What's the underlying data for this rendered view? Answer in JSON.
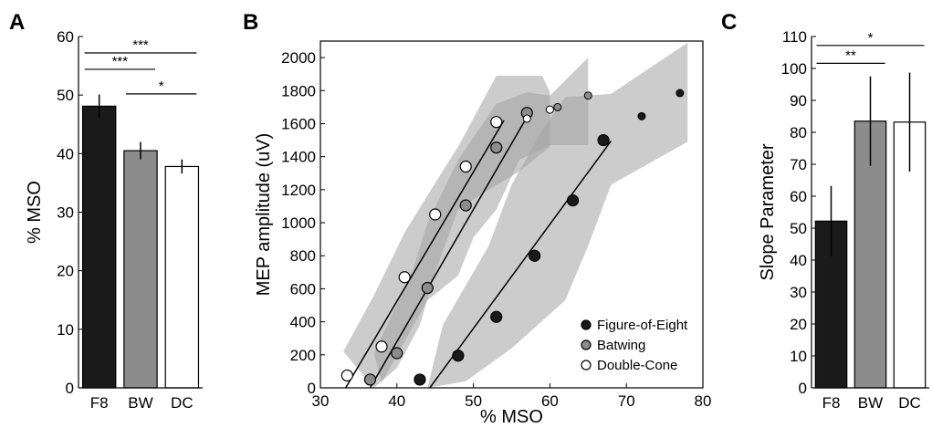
{
  "figure": {
    "panels": [
      {
        "id": "A",
        "label": "A"
      },
      {
        "id": "B",
        "label": "B"
      },
      {
        "id": "C",
        "label": "C"
      }
    ]
  },
  "chart_data": [
    {
      "panel": "A",
      "type": "bar",
      "ylabel": "% MSO",
      "xlabel": "",
      "ylim": [
        0,
        60
      ],
      "yticks": [
        0,
        10,
        20,
        30,
        40,
        50,
        60
      ],
      "categories": [
        "F8",
        "BW",
        "DC"
      ],
      "values": [
        48.1,
        40.5,
        37.8
      ],
      "errors": [
        2.0,
        1.5,
        1.2
      ],
      "colors": [
        "#1a1a1a",
        "#8c8c8c",
        "#ffffff"
      ],
      "significance": [
        {
          "from": 0,
          "to": 2,
          "label": "***",
          "level": 57.2
        },
        {
          "from": 0,
          "to": 1,
          "label": "***",
          "level": 54.4
        },
        {
          "from": 1,
          "to": 2,
          "label": "*",
          "level": 50.2
        }
      ]
    },
    {
      "panel": "B",
      "type": "scatter",
      "xlabel": "% MSO",
      "ylabel": "MEP amplitude (uV)",
      "xlim": [
        30,
        80
      ],
      "ylim": [
        0,
        2100
      ],
      "xticks": [
        30,
        40,
        50,
        60,
        70,
        80
      ],
      "yticks": [
        0,
        200,
        400,
        600,
        800,
        1000,
        1200,
        1400,
        1600,
        1800,
        2000
      ],
      "legend_position": "bottom-right",
      "series": [
        {
          "name": "Figure-of-Eight",
          "color": "#1a1a1a",
          "points": [
            [
              43,
              50
            ],
            [
              48,
              195
            ],
            [
              53,
              430
            ],
            [
              58,
              800
            ],
            [
              63,
              1135
            ],
            [
              67,
              1500
            ]
          ],
          "extra_points": [
            [
              72,
              1645
            ],
            [
              77,
              1785
            ]
          ],
          "fit": [
            [
              44.3,
              0
            ],
            [
              68,
              1495
            ]
          ],
          "band_upper": [
            [
              46,
              380
            ],
            [
              52,
              860
            ],
            [
              55,
              1230
            ],
            [
              59,
              1560
            ],
            [
              62,
              1760
            ],
            [
              68,
              1780
            ],
            [
              78,
              2090
            ]
          ],
          "band_lower": [
            [
              78,
              1490
            ],
            [
              68,
              1230
            ],
            [
              65,
              860
            ],
            [
              62,
              530
            ],
            [
              55,
              240
            ],
            [
              49,
              40
            ],
            [
              44,
              0
            ]
          ]
        },
        {
          "name": "Batwing",
          "color": "#8c8c8c",
          "points": [
            [
              36.5,
              50
            ],
            [
              40,
              210
            ],
            [
              44,
              605
            ],
            [
              49,
              1105
            ],
            [
              53,
              1455
            ],
            [
              57,
              1665
            ]
          ],
          "extra_points": [
            [
              61,
              1700
            ],
            [
              65,
              1770
            ]
          ],
          "fit": [
            [
              36.5,
              0
            ],
            [
              57,
              1640
            ]
          ],
          "band_upper": [
            [
              37,
              210
            ],
            [
              42,
              700
            ],
            [
              44,
              1000
            ],
            [
              48,
              1380
            ],
            [
              53,
              1720
            ],
            [
              57,
              1790
            ],
            [
              60,
              1770
            ],
            [
              65,
              2000
            ]
          ],
          "band_lower": [
            [
              65,
              1470
            ],
            [
              60,
              1470
            ],
            [
              56,
              1380
            ],
            [
              53,
              1080
            ],
            [
              50,
              910
            ],
            [
              48,
              680
            ],
            [
              44,
              530
            ],
            [
              41,
              280
            ],
            [
              38,
              30
            ]
          ]
        },
        {
          "name": "Double-Cone",
          "color": "#ffffff",
          "points": [
            [
              33.5,
              75
            ],
            [
              38,
              250
            ],
            [
              41,
              670
            ],
            [
              45,
              1050
            ],
            [
              49,
              1340
            ],
            [
              53,
              1610
            ]
          ],
          "extra_points": [
            [
              57,
              1630
            ],
            [
              60,
              1685
            ]
          ],
          "fit": [
            [
              33.3,
              0
            ],
            [
              54,
              1620
            ]
          ],
          "band_upper": [
            [
              33,
              220
            ],
            [
              37,
              560
            ],
            [
              41,
              940
            ],
            [
              45,
              1240
            ],
            [
              48,
              1460
            ],
            [
              53,
              1890
            ],
            [
              59,
              1890
            ],
            [
              60,
              1790
            ]
          ],
          "band_lower": [
            [
              60,
              1460
            ],
            [
              56,
              1310
            ],
            [
              52,
              1200
            ],
            [
              48,
              1080
            ],
            [
              45,
              700
            ],
            [
              43,
              380
            ],
            [
              40,
              120
            ],
            [
              37,
              0
            ]
          ]
        }
      ]
    },
    {
      "panel": "C",
      "type": "bar",
      "ylabel": "Slope Parameter",
      "xlabel": "",
      "ylim": [
        0,
        110
      ],
      "yticks": [
        0,
        10,
        20,
        30,
        40,
        50,
        60,
        70,
        80,
        90,
        100,
        110
      ],
      "categories": [
        "F8",
        "BW",
        "DC"
      ],
      "values": [
        52.2,
        83.5,
        83.2
      ],
      "errors": [
        11.0,
        14.0,
        15.5
      ],
      "colors": [
        "#1a1a1a",
        "#8c8c8c",
        "#ffffff"
      ],
      "significance": [
        {
          "from": 0,
          "to": 2,
          "label": "*",
          "level": 107.2
        },
        {
          "from": 0,
          "to": 1,
          "label": "**",
          "level": 101.6
        }
      ]
    }
  ]
}
